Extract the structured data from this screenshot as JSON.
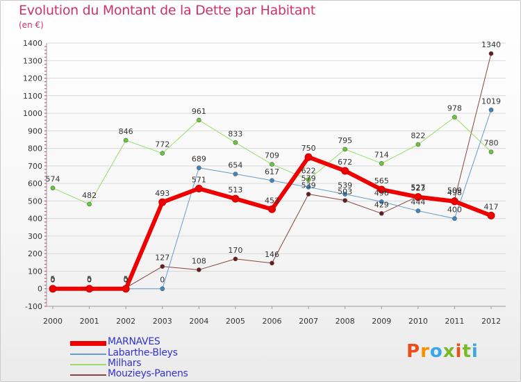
{
  "header": {
    "title": "Evolution du Montant de la Dette par Habitant",
    "subtitle": "(en €)"
  },
  "logo": {
    "text": "Proxiti",
    "letter_colors": [
      "#e94e1b",
      "#f39200",
      "#3ba6e6",
      "#7ab929",
      "#e94e1b",
      "#7ab929",
      "#3ba6e6"
    ]
  },
  "chart_data": {
    "type": "line",
    "x": [
      "2000",
      "2001",
      "2002",
      "2003",
      "2004",
      "2005",
      "2006",
      "2007",
      "2008",
      "2009",
      "2010",
      "2011",
      "2012"
    ],
    "y_ticks": [
      -100,
      0,
      100,
      200,
      300,
      400,
      500,
      600,
      700,
      800,
      900,
      1000,
      1100,
      1200,
      1300,
      1400
    ],
    "ylim": [
      -100,
      1400
    ],
    "grid": "horizontal",
    "series": [
      {
        "name": "MARNAVES",
        "color": "#ee0000",
        "marker": "#ee0000",
        "width": 6,
        "values": [
          0,
          0,
          0,
          493,
          571,
          513,
          453,
          750,
          672,
          565,
          523,
          498,
          417
        ],
        "labels": [
          "0",
          "0",
          "0",
          "493",
          "571",
          "513",
          "453",
          "750",
          "672",
          "565",
          "523",
          "498",
          "417"
        ]
      },
      {
        "name": "Labarthe-Bleys",
        "color": "#6699cc",
        "marker": "#3b88c9",
        "width": 1,
        "values": [
          0,
          0,
          0,
          0,
          689,
          654,
          617,
          579,
          539,
          496,
          444,
          400,
          1019
        ],
        "labels": [
          "0",
          "0",
          "0",
          "0",
          "689",
          "654",
          "617",
          "579",
          "539",
          "496",
          "444",
          "400",
          "1019"
        ]
      },
      {
        "name": "Milhars",
        "color": "#99dd66",
        "marker": "#66cc33",
        "width": 1,
        "values": [
          574,
          482,
          846,
          772,
          961,
          833,
          709,
          622,
          795,
          714,
          822,
          978,
          780
        ],
        "labels": [
          "574",
          "482",
          "846",
          "772",
          "961",
          "833",
          "709",
          "622",
          "795",
          "714",
          "822",
          "978",
          "780"
        ]
      },
      {
        "name": "Mouzieys-Panens",
        "color": "#884444",
        "marker": "#6a1a1a",
        "width": 1,
        "values": [
          5,
          5,
          5,
          127,
          108,
          170,
          146,
          539,
          503,
          429,
          527,
          509,
          1340
        ],
        "labels": [
          "5",
          "5",
          "5",
          "127",
          "108",
          "170",
          "146",
          "539",
          "503",
          "429",
          "527",
          "509",
          "1340"
        ]
      }
    ]
  }
}
